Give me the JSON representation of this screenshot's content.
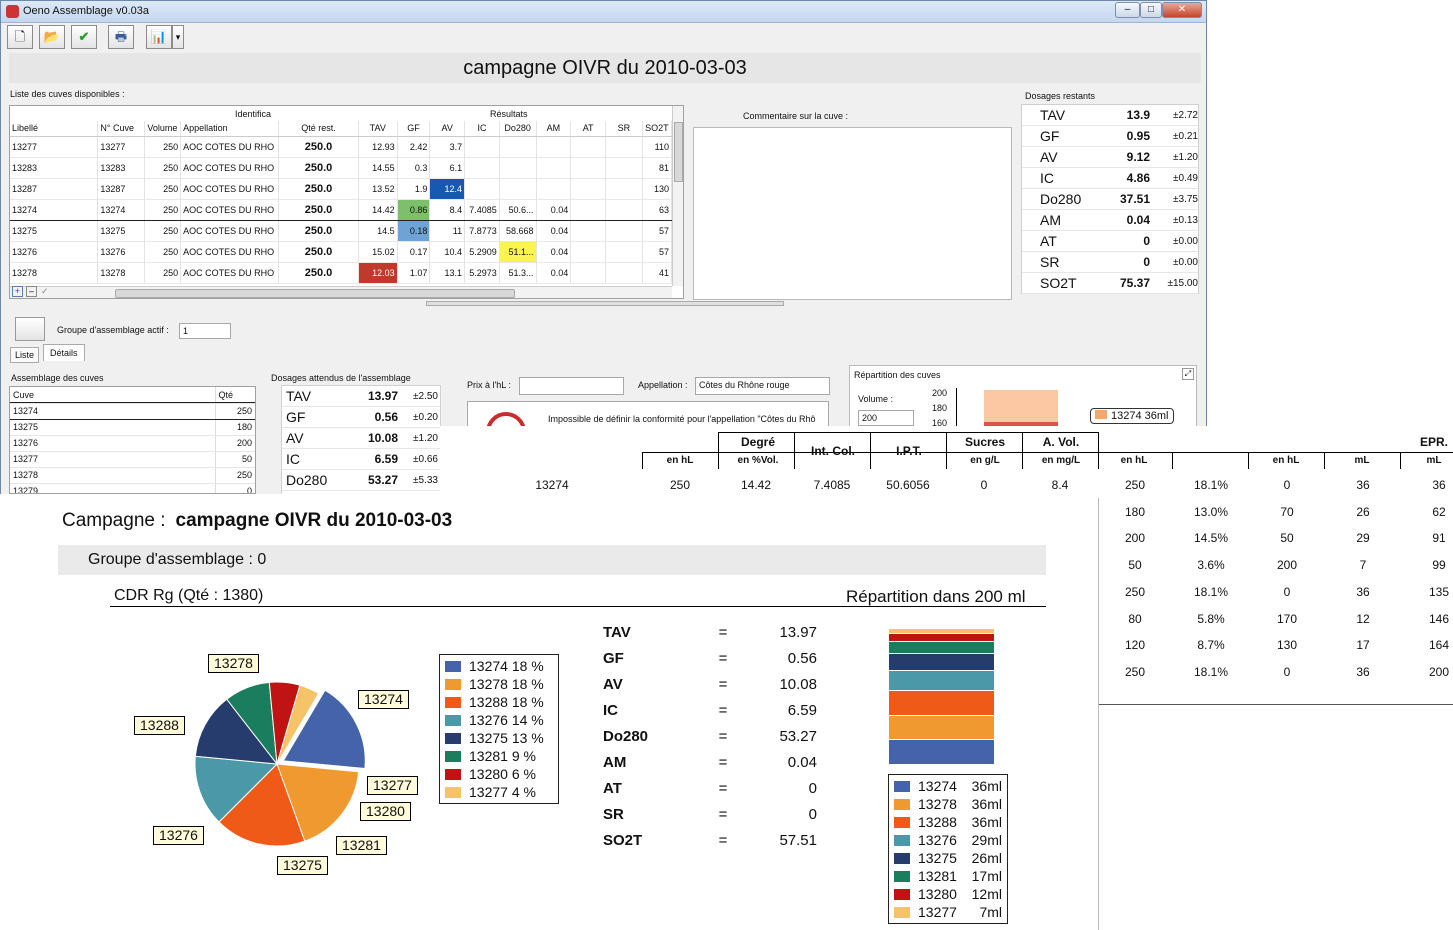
{
  "window": {
    "title": "Oeno Assemblage v0.03a",
    "min": "–",
    "max": "□",
    "close": "✕"
  },
  "toolbar": {
    "new": "🗋",
    "open": "📂",
    "validate": "✔",
    "print": "🖶",
    "chart": "📊",
    "chart_dd": "▾"
  },
  "main_title": "campagne OIVR du 2010-03-03",
  "cuves": {
    "list_label": "Liste des cuves disponibles :",
    "group_ident": "Identifica",
    "group_res": "Résultats",
    "headers": [
      "Libellé",
      "N° Cuve",
      "Volume",
      "Appellation",
      "Qté rest.",
      "TAV",
      "GF",
      "AV",
      "IC",
      "Do280",
      "AM",
      "AT",
      "SR",
      "SO2T"
    ],
    "rows": [
      [
        "13277",
        "13277",
        "250",
        "AOC COTES DU RHO",
        "250.0",
        "12.93",
        "2.42",
        "3.7",
        "",
        "",
        "",
        "",
        "",
        "110"
      ],
      [
        "13283",
        "13283",
        "250",
        "AOC COTES DU RHO",
        "250.0",
        "14.55",
        "0.3",
        "6.1",
        "",
        "",
        "",
        "",
        "",
        "81"
      ],
      [
        "13287",
        "13287",
        "250",
        "AOC COTES DU RHO",
        "250.0",
        "13.52",
        "1.9",
        "12.4",
        "",
        "",
        "",
        "",
        "",
        "130"
      ],
      [
        "13274",
        "13274",
        "250",
        "AOC COTES DU RHO",
        "250.0",
        "14.42",
        "0.86",
        "8.4",
        "7.4085",
        "50.6...",
        "0.04",
        "",
        "",
        "63"
      ],
      [
        "13275",
        "13275",
        "250",
        "AOC COTES DU RHO",
        "250.0",
        "14.5",
        "0.18",
        "11",
        "7.8773",
        "58.668",
        "0.04",
        "",
        "",
        "57"
      ],
      [
        "13276",
        "13276",
        "250",
        "AOC COTES DU RHO",
        "250.0",
        "15.02",
        "0.17",
        "10.4",
        "5.2909",
        "51.1...",
        "0.04",
        "",
        "",
        "57"
      ],
      [
        "13278",
        "13278",
        "250",
        "AOC COTES DU RHO",
        "250.0",
        "12.03",
        "1.07",
        "13.1",
        "5.2973",
        "51.3...",
        "0.04",
        "",
        "",
        "41"
      ]
    ],
    "highlight_colors": {
      "green": "#7cc16a",
      "blue_light": "#6fa3d6",
      "blue_dark": "#1659b0",
      "yellow": "#fbf34f",
      "red": "#c0392b"
    },
    "add": "+",
    "remove": "–",
    "ok": "✓"
  },
  "comment_label": "Commentaire sur la cuve :",
  "dosages_restants": {
    "label": "Dosages restants",
    "rows": [
      {
        "n": "TAV",
        "v": "13.9",
        "s": "±2.72"
      },
      {
        "n": "GF",
        "v": "0.95",
        "s": "±0.21"
      },
      {
        "n": "AV",
        "v": "9.12",
        "s": "±1.20"
      },
      {
        "n": "IC",
        "v": "4.86",
        "s": "±0.49"
      },
      {
        "n": "Do280",
        "v": "37.51",
        "s": "±3.75"
      },
      {
        "n": "AM",
        "v": "0.04",
        "s": "±0.13"
      },
      {
        "n": "AT",
        "v": "0",
        "s": "±0.00"
      },
      {
        "n": "SR",
        "v": "0",
        "s": "±0.00"
      },
      {
        "n": "SO2T",
        "v": "75.37",
        "s": "±15.00"
      }
    ]
  },
  "groupe": {
    "label": "Groupe d'assemblage actif :",
    "value": "1"
  },
  "tabs": [
    "Liste",
    "Détails"
  ],
  "assemblage": {
    "label": "Assemblage des cuves",
    "headers": [
      "Cuve",
      "Qté"
    ],
    "rows": [
      [
        "13274",
        "250"
      ],
      [
        "13275",
        "180"
      ],
      [
        "13276",
        "200"
      ],
      [
        "13277",
        "50"
      ],
      [
        "13278",
        "250"
      ],
      [
        "13279",
        "0"
      ]
    ]
  },
  "dosages_attendus": {
    "label": "Dosages attendus de l'assemblage",
    "rows": [
      {
        "n": "TAV",
        "v": "13.97",
        "s": "±2.50"
      },
      {
        "n": "GF",
        "v": "0.56",
        "s": "±0.20"
      },
      {
        "n": "AV",
        "v": "10.08",
        "s": "±1.20"
      },
      {
        "n": "IC",
        "v": "6.59",
        "s": "±0.66"
      },
      {
        "n": "Do280",
        "v": "53.27",
        "s": "±5.33"
      }
    ]
  },
  "prix_label": "Prix à l'hL :",
  "appellation": {
    "label": "Appellation :",
    "value": "Côtes du Rhône rouge"
  },
  "warning": "Impossible de définir la conformité pour l'appellation \"Côtes du Rhô",
  "repartition_panel": {
    "title": "Répartition des cuves",
    "volume_label": "Volume :",
    "volume": "200",
    "ticks": [
      "200",
      "180",
      "160"
    ],
    "tip": "13274  36ml"
  },
  "report_table": {
    "headers": [
      {
        "t": "Degré",
        "s": "en %Vol."
      },
      {
        "t": "Int. Col.",
        "s": ""
      },
      {
        "t": "I.P.T.",
        "s": ""
      },
      {
        "t": "Sucres",
        "s": "en g/L"
      },
      {
        "t": "A. Vol.",
        "s": "en mg/L"
      }
    ],
    "subs": {
      "hl": "en hL",
      "hl2": "en hL",
      "hl3": "en hL",
      "ml": "mL",
      "epr": "EPR.",
      "ml2": "mL"
    },
    "first": [
      "13274",
      "250",
      "14.42",
      "7.4085",
      "50.6056",
      "0",
      "8.4"
    ],
    "list": [
      [
        "250",
        "18.1%",
        "0",
        "36",
        "36"
      ],
      [
        "180",
        "13.0%",
        "70",
        "26",
        "62"
      ],
      [
        "200",
        "14.5%",
        "50",
        "29",
        "91"
      ],
      [
        "50",
        "3.6%",
        "200",
        "7",
        "99"
      ],
      [
        "250",
        "18.1%",
        "0",
        "36",
        "135"
      ],
      [
        "80",
        "5.8%",
        "170",
        "12",
        "146"
      ],
      [
        "120",
        "8.7%",
        "130",
        "17",
        "164"
      ],
      [
        "250",
        "18.1%",
        "0",
        "36",
        "200"
      ]
    ]
  },
  "report": {
    "campagne_label": "Campagne :",
    "campagne": "campagne OIVR du 2010-03-03",
    "groupe": "Groupe d'assemblage : 0",
    "cdr": "CDR Rg (Qté : 1380)",
    "repartition": "Répartition dans 200 ml",
    "results": [
      {
        "n": "TAV",
        "e": "=",
        "v": "13.97"
      },
      {
        "n": "GF",
        "e": "=",
        "v": "0.56"
      },
      {
        "n": "AV",
        "e": "=",
        "v": "10.08"
      },
      {
        "n": "IC",
        "e": "=",
        "v": "6.59"
      },
      {
        "n": "Do280",
        "e": "=",
        "v": "53.27"
      },
      {
        "n": "AM",
        "e": "=",
        "v": "0.04"
      },
      {
        "n": "AT",
        "e": "=",
        "v": "0"
      },
      {
        "n": "SR",
        "e": "=",
        "v": "0"
      },
      {
        "n": "SO2T",
        "e": "=",
        "v": "57.51"
      }
    ]
  },
  "chart_data": [
    {
      "type": "pie",
      "title": "",
      "slices": [
        {
          "label": "13274",
          "value": 18,
          "color": "#4563a8"
        },
        {
          "label": "13278",
          "value": 18,
          "color": "#f0992f"
        },
        {
          "label": "13288",
          "value": 18,
          "color": "#f05a18"
        },
        {
          "label": "13276",
          "value": 14,
          "color": "#4a98a8"
        },
        {
          "label": "13275",
          "value": 13,
          "color": "#263c6c"
        },
        {
          "label": "13281",
          "value": 9,
          "color": "#1a7d5e"
        },
        {
          "label": "13280",
          "value": 6,
          "color": "#c01313"
        },
        {
          "label": "13277",
          "value": 4,
          "color": "#f7c368"
        }
      ],
      "legend": [
        "13274 18 %",
        "13278 18 %",
        "13288 18 %",
        "13276 14 %",
        "13275 13 %",
        "13281 9 %",
        "13280 6 %",
        "13277 4 %"
      ]
    },
    {
      "type": "bar",
      "title": "Répartition dans 200 ml",
      "categories": [
        "13274",
        "13278",
        "13288",
        "13276",
        "13275",
        "13281",
        "13280",
        "13277"
      ],
      "values": [
        36,
        36,
        36,
        29,
        26,
        17,
        12,
        7
      ],
      "legend_values": [
        "36ml",
        "36ml",
        "36ml",
        "29ml",
        "26ml",
        "17ml",
        "12ml",
        "7ml"
      ]
    }
  ]
}
